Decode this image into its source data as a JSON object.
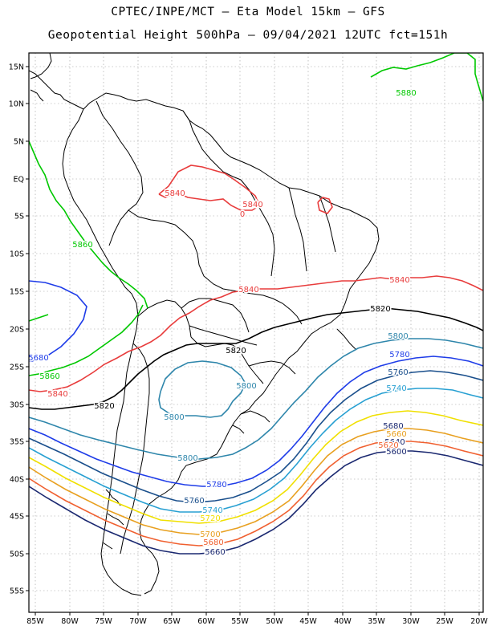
{
  "header": {
    "line1": "CPTEC/INPE/MCT –  Eta Model 15km – GFS",
    "line2": "Geopotential Height 500hPa – 09/04/2021 12UTC fct=151h"
  },
  "axes": {
    "lon_labels": [
      "85W",
      "80W",
      "75W",
      "70W",
      "65W",
      "60W",
      "55W",
      "50W",
      "45W",
      "40W",
      "35W",
      "30W",
      "25W",
      "20W"
    ],
    "lat_labels": [
      "15N",
      "10N",
      "5N",
      "EQ",
      "5S",
      "10S",
      "15S",
      "20S",
      "25S",
      "30S",
      "35S",
      "40S",
      "45S",
      "50S",
      "55S"
    ]
  },
  "colors": {
    "5880": "#00c800",
    "5860": "#00c800",
    "5840": "#e83c3c",
    "5820": "#000000",
    "5800": "#2e86ab",
    "5780": "#1e3ce8",
    "5760": "#1a4f8c",
    "5740": "#28a0d2",
    "5720": "#f0e000",
    "5700": "#e8a020",
    "5680": "#f06030",
    "5660": "#1a2870",
    "coast": "#000000"
  },
  "contour_labels": [
    {
      "text": "5880",
      "key": "5880"
    },
    {
      "text": "5860",
      "key": "5860"
    },
    {
      "text": "5840",
      "key": "5840"
    },
    {
      "text": "5840",
      "key": "5840"
    },
    {
      "text": "0",
      "key": "5840"
    },
    {
      "text": "5840",
      "key": "5840"
    },
    {
      "text": "5840",
      "key": "5840"
    },
    {
      "text": "5680",
      "key": "5780"
    },
    {
      "text": "5860",
      "key": "5860"
    },
    {
      "text": "5840",
      "key": "5840"
    },
    {
      "text": "5820",
      "key": "5820"
    },
    {
      "text": "5820",
      "key": "5820"
    },
    {
      "text": "5820",
      "key": "5820"
    },
    {
      "text": "5800",
      "key": "5800"
    },
    {
      "text": "5800",
      "key": "5800"
    },
    {
      "text": "5800",
      "key": "5800"
    },
    {
      "text": "5800",
      "key": "5800"
    },
    {
      "text": "5780",
      "key": "5780"
    },
    {
      "text": "5760",
      "key": "5760"
    },
    {
      "text": "5740",
      "key": "5740"
    },
    {
      "text": "5780",
      "key": "5780"
    },
    {
      "text": "5760",
      "key": "5760"
    },
    {
      "text": "5740",
      "key": "5740"
    },
    {
      "text": "5720",
      "key": "5720"
    },
    {
      "text": "5700",
      "key": "5700"
    },
    {
      "text": "5680",
      "key": "5680"
    },
    {
      "text": "5660",
      "key": "5660"
    },
    {
      "text": "5680",
      "key": "5660"
    },
    {
      "text": "5660",
      "key": "5700"
    },
    {
      "text": "5640",
      "key": "5660"
    },
    {
      "text": "5620",
      "key": "5680"
    },
    {
      "text": "5600",
      "key": "5660"
    }
  ]
}
